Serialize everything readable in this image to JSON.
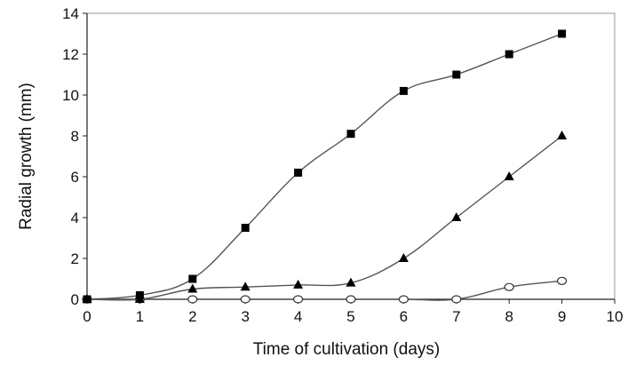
{
  "chart_data": {
    "type": "line",
    "xlabel": "Time of cultivation (days)",
    "ylabel": "Radial growth (mm)",
    "xlim": [
      0,
      10
    ],
    "ylim": [
      0,
      14
    ],
    "xticks": [
      "0",
      "1",
      "2",
      "3",
      "4",
      "5",
      "6",
      "7",
      "8",
      "9",
      "10"
    ],
    "yticks": [
      "0",
      "2",
      "4",
      "6",
      "8",
      "10",
      "12",
      "14"
    ],
    "grid": false,
    "legend": "none",
    "colors": {
      "line": "#555555",
      "marker": "#000000",
      "axis": "#222222"
    },
    "series": [
      {
        "marker": "square",
        "x": [
          0,
          1,
          2,
          3,
          4,
          5,
          6,
          7,
          8,
          9
        ],
        "values": [
          0,
          0.2,
          1.0,
          3.5,
          6.2,
          8.1,
          10.2,
          11.0,
          12.0,
          13.0
        ]
      },
      {
        "marker": "triangle",
        "x": [
          0,
          1,
          2,
          3,
          4,
          5,
          6,
          7,
          8,
          9
        ],
        "values": [
          0,
          0,
          0.5,
          0.6,
          0.7,
          0.8,
          2.0,
          4.0,
          6.0,
          8.0
        ]
      },
      {
        "marker": "circle",
        "x": [
          0,
          1,
          2,
          3,
          4,
          5,
          6,
          7,
          8,
          9
        ],
        "values": [
          0,
          0,
          0,
          0,
          0,
          0,
          0,
          0,
          0.6,
          0.9
        ]
      }
    ]
  }
}
